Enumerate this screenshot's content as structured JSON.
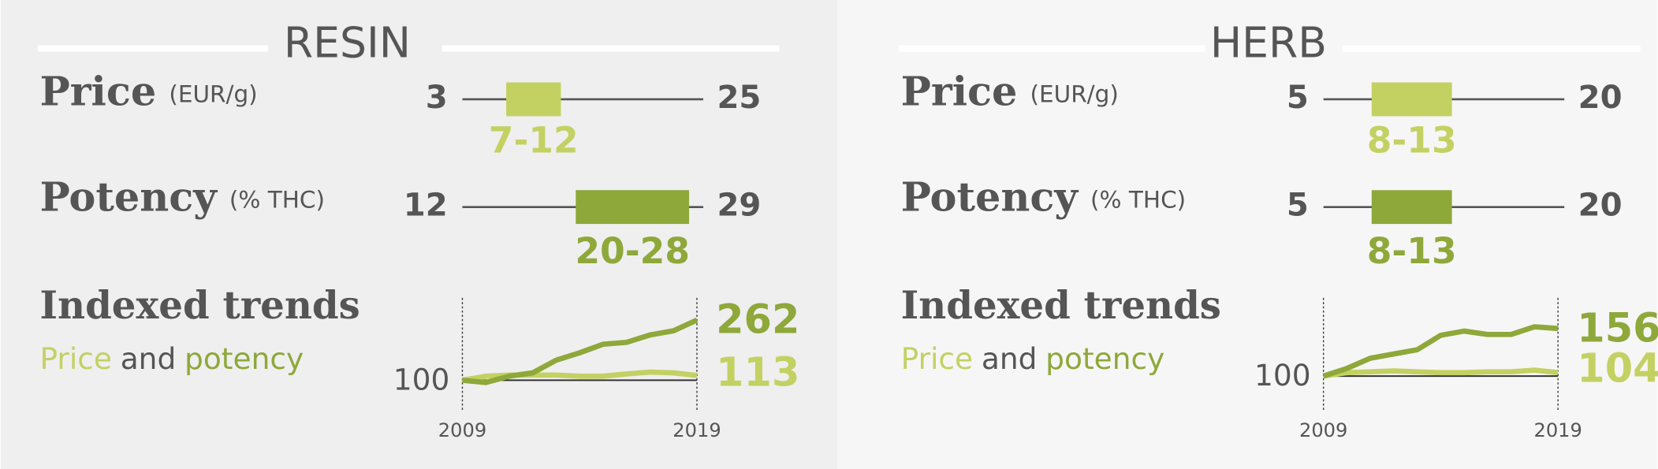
{
  "panels": [
    {
      "title": "RESIN",
      "price": {
        "label": "Price",
        "unit": "(EUR/g)",
        "min": 3,
        "max": 25,
        "low": 7,
        "high": 12,
        "range_label": "7-12",
        "color": "#c3d163"
      },
      "potency": {
        "label": "Potency",
        "unit": "(% THC)",
        "min": 12,
        "max": 29,
        "low": 20,
        "high": 28,
        "range_label": "20-28",
        "color": "#8ea83a"
      },
      "trends": {
        "title": "Indexed trends",
        "legend": [
          "Price",
          "and",
          "potency"
        ],
        "x": [
          2009,
          2010,
          2011,
          2012,
          2013,
          2014,
          2015,
          2016,
          2017,
          2018,
          2019
        ],
        "xticks": [
          2009,
          2019
        ],
        "ylim": [
          100,
          262
        ],
        "yticks": [
          100
        ],
        "series": [
          {
            "name": "Price",
            "color": "#c3d163",
            "values": [
              100,
              111,
              114,
              114,
              114,
              111,
              111,
              117,
              122,
              120,
              113
            ]
          },
          {
            "name": "potency",
            "color": "#8ea83a",
            "values": [
              100,
              94,
              111,
              120,
              154,
              174,
              197,
              202,
              222,
              233,
              262
            ]
          }
        ]
      }
    },
    {
      "title": "HERB",
      "price": {
        "label": "Price",
        "unit": "(EUR/g)",
        "min": 5,
        "max": 20,
        "low": 8,
        "high": 13,
        "range_label": "8-13",
        "color": "#c3d163"
      },
      "potency": {
        "label": "Potency",
        "unit": "(% THC)",
        "min": 5,
        "max": 20,
        "low": 8,
        "high": 13,
        "range_label": "8-13",
        "color": "#8ea83a"
      },
      "trends": {
        "title": "Indexed trends",
        "legend": [
          "Price",
          "and",
          "potency"
        ],
        "x": [
          2009,
          2010,
          2011,
          2012,
          2013,
          2014,
          2015,
          2016,
          2017,
          2018,
          2019
        ],
        "xticks": [
          2009,
          2019
        ],
        "ylim": [
          100,
          156
        ],
        "yticks": [
          100
        ],
        "series": [
          {
            "name": "Price",
            "color": "#c3d163",
            "values": [
              100,
              104,
              105,
              106,
              105,
              104,
              104,
              105,
              105,
              107,
              104
            ]
          },
          {
            "name": "potency",
            "color": "#8ea83a",
            "values": [
              100,
              109,
              121,
              126,
              131,
              148,
              153,
              149,
              149,
              158,
              156
            ]
          }
        ]
      }
    }
  ]
}
